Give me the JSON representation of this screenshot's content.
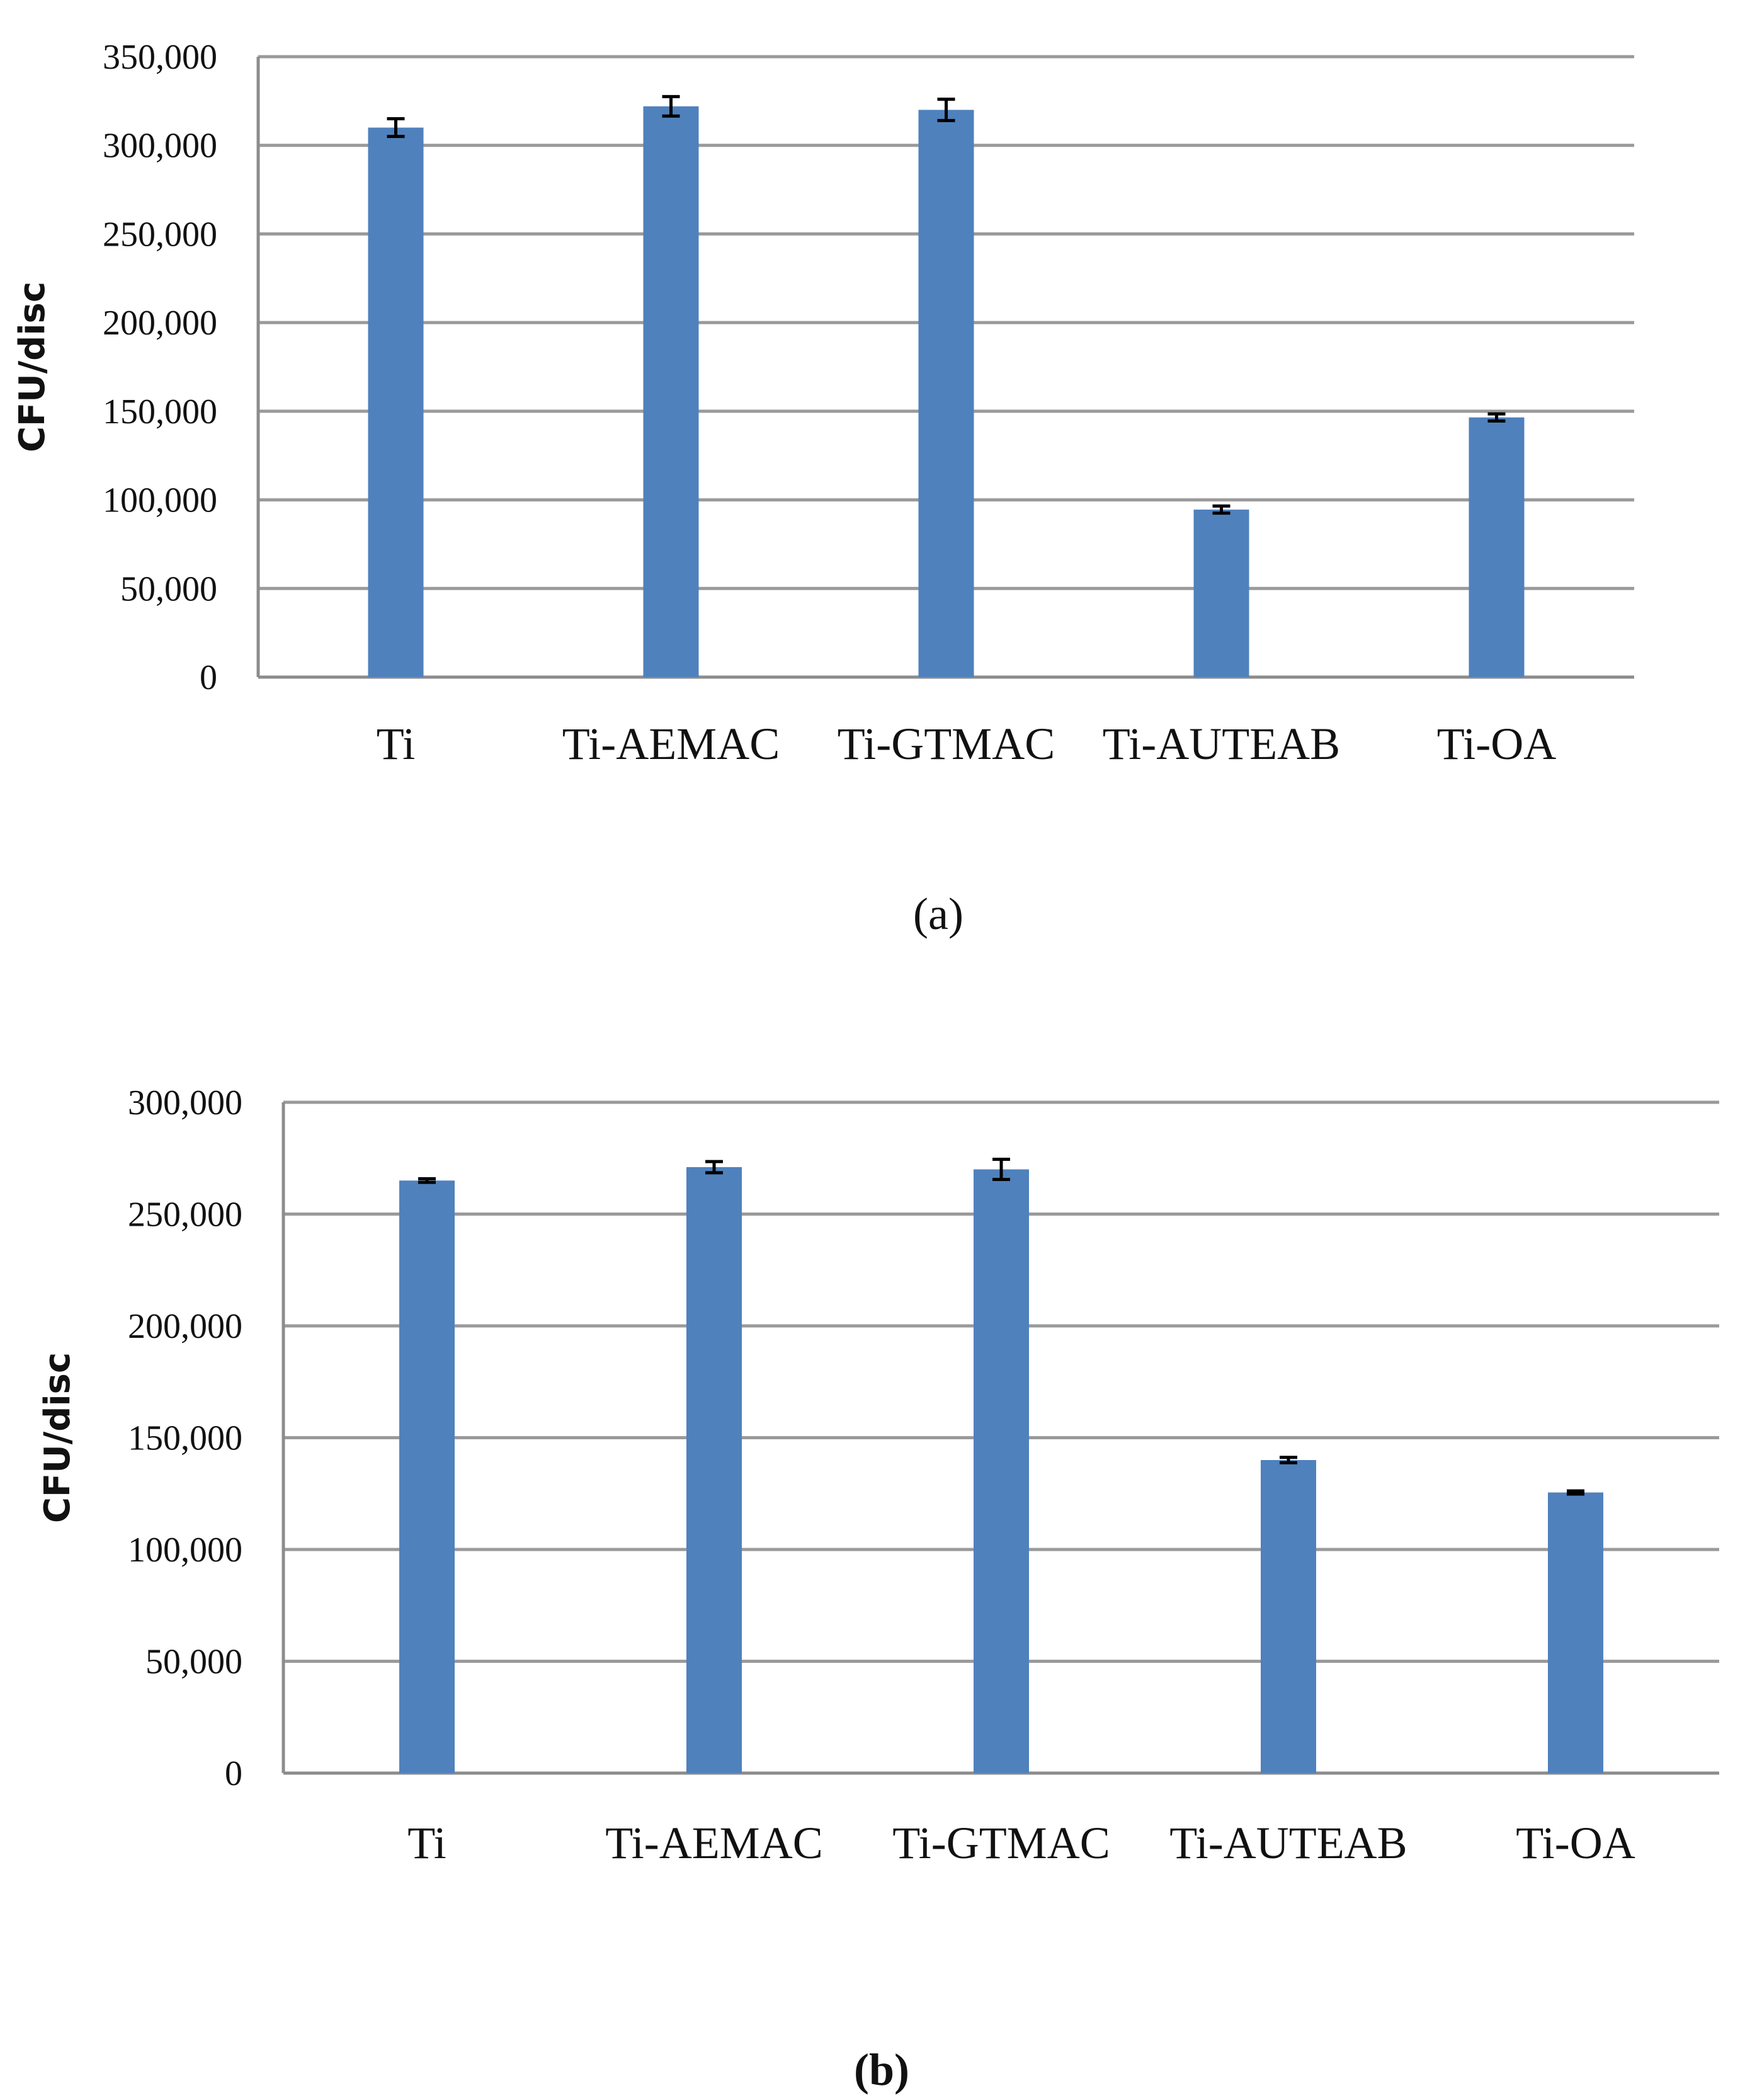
{
  "chart_data": [
    {
      "type": "bar",
      "caption": "(a)",
      "ylabel": "CFU/disc",
      "categories": [
        "Ti",
        "Ti-AEMAC",
        "Ti-GTMAC",
        "Ti-AUTEAB",
        "Ti-OA"
      ],
      "values": [
        310000,
        322000,
        320000,
        94500,
        146500
      ],
      "errors": [
        5000,
        5500,
        6000,
        2000,
        2000
      ],
      "ylim": [
        0,
        350000
      ],
      "yticks": [
        0,
        50000,
        100000,
        150000,
        200000,
        250000,
        300000,
        350000
      ],
      "ytick_labels": [
        "0",
        "50,000",
        "100,000",
        "150,000",
        "200,000",
        "250,000",
        "300,000",
        "350,000"
      ],
      "grid": true,
      "bar_color": "#4f81bd"
    },
    {
      "type": "bar",
      "caption": "(b)",
      "ylabel": "CFU/disc",
      "categories": [
        "Ti",
        "Ti-AEMAC",
        "Ti-GTMAC",
        "Ti-AUTEAB",
        "Ti-OA"
      ],
      "values": [
        265000,
        271000,
        270000,
        140000,
        125500
      ],
      "errors": [
        800,
        2500,
        4500,
        1200,
        700
      ],
      "ylim": [
        0,
        300000
      ],
      "yticks": [
        0,
        50000,
        100000,
        150000,
        200000,
        250000,
        300000
      ],
      "ytick_labels": [
        "0",
        "50,000",
        "100,000",
        "150,000",
        "200,000",
        "250,000",
        "300,000"
      ],
      "grid": true,
      "bar_color": "#4f81bd"
    }
  ]
}
